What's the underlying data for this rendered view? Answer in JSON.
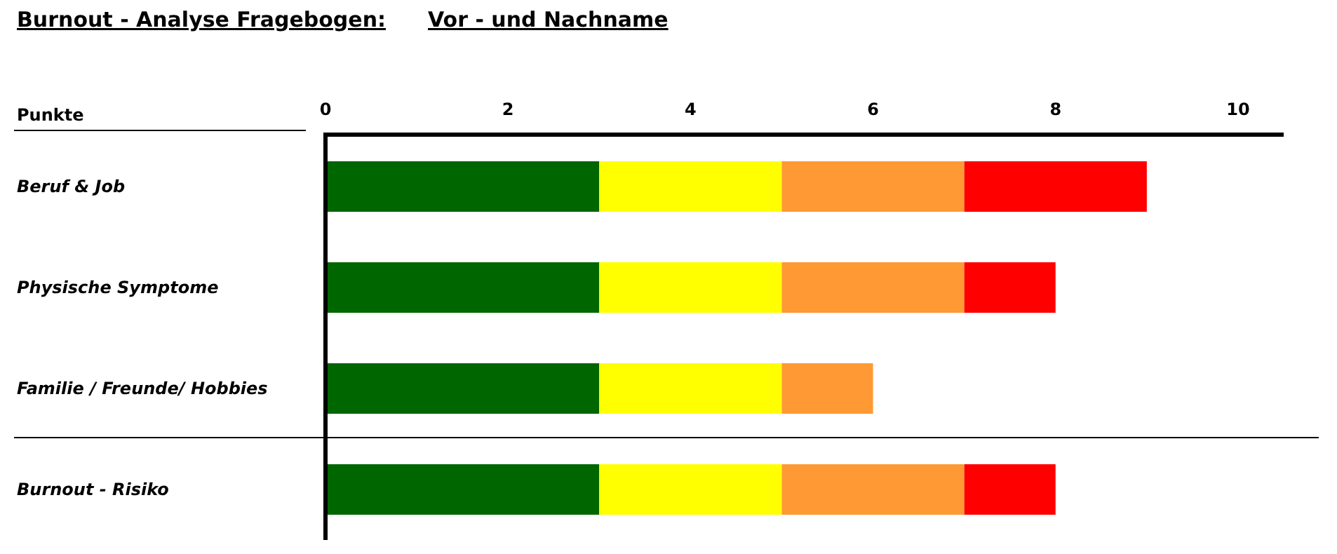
{
  "chart_data": {
    "type": "bar",
    "title": "Burnout - Analyse Fragebogen:",
    "subtitle": "Vor - und Nachname",
    "xlabel": "Punkte",
    "orientation": "horizontal",
    "stacked": true,
    "categories": [
      "Beruf & Job",
      "Physische Symptome",
      "Familie / Freunde/ Hobbies",
      "Burnout - Risiko"
    ],
    "series": [
      {
        "color": "#006600",
        "values": [
          3,
          3,
          3,
          3
        ]
      },
      {
        "color": "#ffff00",
        "values": [
          2,
          2,
          2,
          2
        ]
      },
      {
        "color": "#ff9933",
        "values": [
          2,
          2,
          1,
          2
        ]
      },
      {
        "color": "#ff0000",
        "values": [
          2,
          1,
          null,
          1
        ]
      }
    ],
    "xlim": [
      0,
      10.5
    ],
    "xticks": [
      0,
      2,
      4,
      6,
      8,
      10
    ],
    "grid": false
  }
}
